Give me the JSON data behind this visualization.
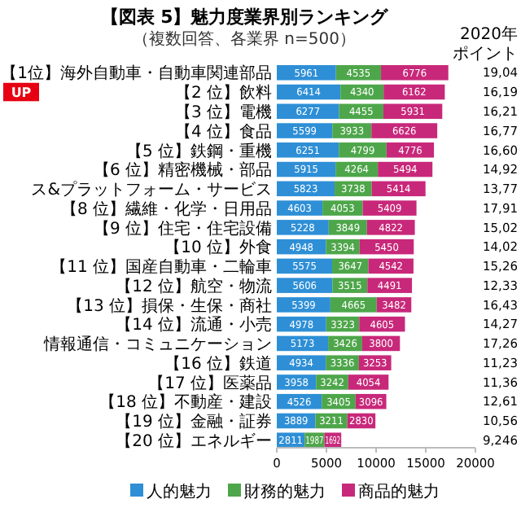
{
  "chart_data": {
    "type": "bar",
    "orientation": "horizontal",
    "stacked": true,
    "title": "【図表 5】魅力度業界別ランキング",
    "subtitle": "（複数回答、各業界 n=500）",
    "categories": [
      "【1位】海外自動車・自動車関連部品",
      "【2 位】飲料",
      "【3 位】電機",
      "【4 位】食品",
      "【5 位】鉄鋼・重機",
      "【6 位】精密機械・部品",
      "ス&プラットフォーム・サービス",
      "【8 位】繊維・化学・日用品",
      "【9 位】住宅・住宅設備",
      "【10 位】外食",
      "【11 位】国産自動車・二輪車",
      "【12 位】航空・物流",
      "【13 位】損保・生保・商社",
      "【14 位】流通・小売",
      "情報通信・コミュニケーション",
      "【16 位】鉄道",
      "【17 位】医薬品",
      "【18 位】不動産・建設",
      "【19 位】金融・証券",
      "【20 位】エネルギー"
    ],
    "series": [
      {
        "name": "人的魅力",
        "color": "#2e8fd6",
        "values": [
          5961,
          6414,
          6277,
          5599,
          6251,
          5915,
          5823,
          4603,
          5228,
          4948,
          5575,
          5606,
          5399,
          4978,
          5173,
          4934,
          3958,
          4526,
          3889,
          2811
        ]
      },
      {
        "name": "財務的魅力",
        "color": "#4ea64a",
        "values": [
          4535,
          4340,
          4455,
          3933,
          4799,
          4264,
          3738,
          4053,
          3849,
          3394,
          3647,
          3515,
          4665,
          3323,
          3426,
          3336,
          3242,
          3405,
          3211,
          1987
        ]
      },
      {
        "name": "商品的魅力",
        "color": "#c8287a",
        "values": [
          6776,
          6162,
          5931,
          6626,
          4776,
          5494,
          5414,
          5409,
          4822,
          5450,
          4542,
          4491,
          3482,
          4605,
          3800,
          3253,
          4054,
          3096,
          2830,
          1692
        ]
      }
    ],
    "xlim": [
      0,
      20000
    ],
    "xticks": [
      0,
      5000,
      10000,
      15000,
      20000
    ],
    "legend": "bottom",
    "data_labels": true,
    "annotations": [
      "UP",
      "2020年",
      "ポイント",
      "19,04",
      "16,19",
      "16,21",
      "16,77",
      "16,60",
      "14,92",
      "13,77",
      "17,91",
      "15,02",
      "14,02",
      "15,26",
      "12,33",
      "16,43",
      "14,27",
      "17,26",
      "11,23",
      "11,36",
      "12,61",
      "10,56",
      "9,246"
    ]
  }
}
